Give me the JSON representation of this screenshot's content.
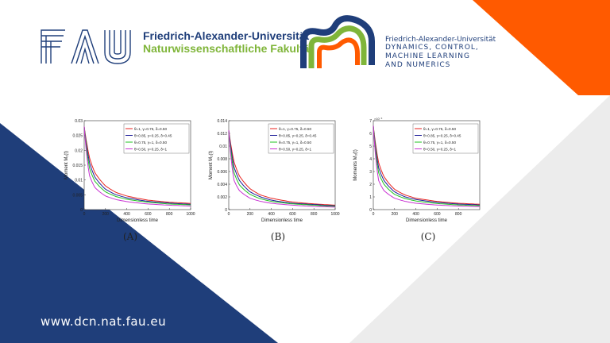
{
  "header": {
    "fau_logo_text": "FAU",
    "university_name": "Friedrich-Alexander-Universität",
    "faculty_name": "Naturwissenschaftliche Fakultät",
    "dcn_university": "Friedrich-Alexander-Universität",
    "dcn_lines": [
      "DYNAMICS, CONTROL,",
      "MACHINE LEARNING",
      "AND NUMERICS"
    ]
  },
  "colors": {
    "navy": "#1f3e7a",
    "green": "#7fb539",
    "orange": "#ff5a00",
    "series": [
      "#e8231f",
      "#1f1f9a",
      "#22c322",
      "#c832d2"
    ]
  },
  "footer": {
    "url": "www.dcn.nat.fau.eu"
  },
  "chart_data": [
    {
      "type": "line",
      "caption": "(A)",
      "xlabel": "Dimensionless time",
      "ylabel": "Moment M₁(t)",
      "xlim": [
        0,
        1000
      ],
      "ylim": [
        0,
        0.03
      ],
      "xticks": [
        "0",
        "200",
        "400",
        "600",
        "800",
        "1000"
      ],
      "yticks": [
        "0",
        "0.005",
        "0.01",
        "0.015",
        "0.02",
        "0.025",
        "0.03"
      ],
      "exponent": "",
      "y0": 0.028,
      "series": [
        {
          "name": "θ=1, γ=0.75, δ=0.50",
          "x": [
            0,
            50,
            100,
            200,
            300,
            400,
            600,
            800,
            1000
          ],
          "values": [
            0.028,
            0.0175,
            0.0125,
            0.008,
            0.0058,
            0.0046,
            0.0032,
            0.0025,
            0.0021
          ]
        },
        {
          "name": "θ=0.85, γ=0.25, δ=0.45",
          "x": [
            0,
            50,
            100,
            200,
            300,
            400,
            600,
            800,
            1000
          ],
          "values": [
            0.028,
            0.0158,
            0.011,
            0.0069,
            0.005,
            0.004,
            0.0028,
            0.0022,
            0.0018
          ]
        },
        {
          "name": "θ=0.75, γ=1, δ=0.50",
          "x": [
            0,
            50,
            100,
            200,
            300,
            400,
            600,
            800,
            1000
          ],
          "values": [
            0.028,
            0.014,
            0.0096,
            0.006,
            0.0044,
            0.0035,
            0.0025,
            0.0019,
            0.0016
          ]
        },
        {
          "name": "θ=0.50, γ=0.25, δ=1",
          "x": [
            0,
            50,
            100,
            200,
            300,
            400,
            600,
            800,
            1000
          ],
          "values": [
            0.028,
            0.0115,
            0.0075,
            0.0046,
            0.0034,
            0.0027,
            0.0019,
            0.0015,
            0.0012
          ]
        }
      ]
    },
    {
      "type": "line",
      "caption": "(B)",
      "xlabel": "Dimensionless time",
      "ylabel": "Moment M₂(t)",
      "xlim": [
        0,
        1000
      ],
      "ylim": [
        0,
        0.014
      ],
      "xticks": [
        "0",
        "200",
        "400",
        "600",
        "800",
        "1000"
      ],
      "yticks": [
        "0",
        "0.002",
        "0.004",
        "0.006",
        "0.008",
        "0.01",
        "0.012",
        "0.014"
      ],
      "exponent": "",
      "y0": 0.0125,
      "series": [
        {
          "name": "θ=1, γ=0.75, δ=0.50",
          "x": [
            0,
            50,
            100,
            200,
            300,
            400,
            600,
            800,
            1000
          ],
          "values": [
            0.0125,
            0.0075,
            0.0053,
            0.0033,
            0.0023,
            0.0018,
            0.0012,
            0.0009,
            0.0007
          ]
        },
        {
          "name": "θ=0.85, γ=0.25, δ=0.45",
          "x": [
            0,
            50,
            100,
            200,
            300,
            400,
            600,
            800,
            1000
          ],
          "values": [
            0.0125,
            0.0067,
            0.0046,
            0.0028,
            0.002,
            0.0015,
            0.001,
            0.0008,
            0.0006
          ]
        },
        {
          "name": "θ=0.75, γ=1, δ=0.50",
          "x": [
            0,
            50,
            100,
            200,
            300,
            400,
            600,
            800,
            1000
          ],
          "values": [
            0.0125,
            0.0058,
            0.0039,
            0.0024,
            0.0017,
            0.0013,
            0.0009,
            0.0007,
            0.0005
          ]
        },
        {
          "name": "θ=0.50, γ=0.25, δ=1",
          "x": [
            0,
            50,
            100,
            200,
            300,
            400,
            600,
            800,
            1000
          ],
          "values": [
            0.0125,
            0.0046,
            0.003,
            0.0018,
            0.0013,
            0.001,
            0.0007,
            0.0005,
            0.0004
          ]
        }
      ]
    },
    {
      "type": "line",
      "caption": "(C)",
      "xlabel": "Dimensionless time",
      "ylabel": "Moments M₃(t)",
      "xlim": [
        0,
        1000
      ],
      "ylim": [
        0,
        7
      ],
      "xticks": [
        "0",
        "200",
        "400",
        "600",
        "800"
      ],
      "yticks": [
        "0",
        "1",
        "2",
        "3",
        "4",
        "5",
        "6",
        "7"
      ],
      "exponent": "×10⁻³",
      "y0": 6.6,
      "series": [
        {
          "name": "θ=1, γ=0.75, δ=0.50",
          "x": [
            0,
            50,
            100,
            200,
            300,
            400,
            600,
            800,
            1000
          ],
          "values": [
            6.6,
            3.7,
            2.6,
            1.6,
            1.15,
            0.9,
            0.65,
            0.5,
            0.42
          ]
        },
        {
          "name": "θ=0.85, γ=0.25, δ=0.45",
          "x": [
            0,
            50,
            100,
            200,
            300,
            400,
            600,
            800,
            1000
          ],
          "values": [
            6.6,
            3.3,
            2.3,
            1.4,
            1.0,
            0.8,
            0.57,
            0.44,
            0.37
          ]
        },
        {
          "name": "θ=0.75, γ=1, δ=0.50",
          "x": [
            0,
            50,
            100,
            200,
            300,
            400,
            600,
            800,
            1000
          ],
          "values": [
            6.6,
            2.9,
            2.0,
            1.2,
            0.87,
            0.68,
            0.48,
            0.37,
            0.31
          ]
        },
        {
          "name": "θ=0.50, γ=0.25, δ=1",
          "x": [
            0,
            50,
            100,
            200,
            300,
            400,
            600,
            800,
            1000
          ],
          "values": [
            6.6,
            2.3,
            1.5,
            0.9,
            0.65,
            0.5,
            0.36,
            0.28,
            0.23
          ]
        }
      ]
    }
  ]
}
